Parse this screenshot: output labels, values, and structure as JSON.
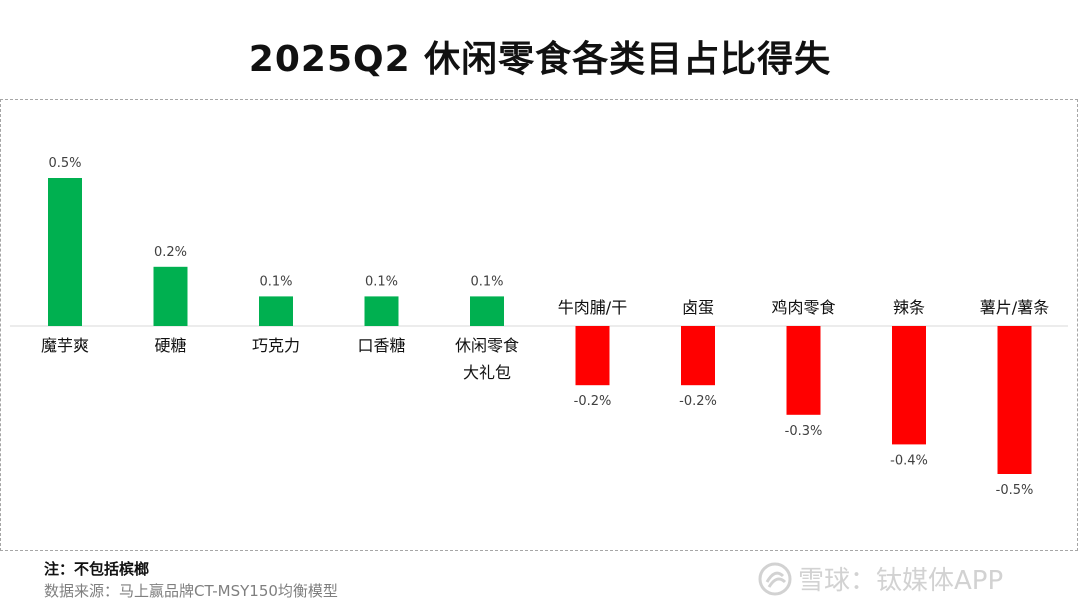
{
  "title": "2025Q2 休闲零食各类目占比得失",
  "chart_data": {
    "type": "bar",
    "title": "2025Q2 休闲零食各类目占比得失",
    "categories": [
      "魔芋爽",
      "硬糖",
      "巧克力",
      "口香糖",
      "休闲零食\n大礼包",
      "牛肉脯/干",
      "卤蛋",
      "鸡肉零食",
      "辣条",
      "薯片/薯条"
    ],
    "values": [
      0.5,
      0.2,
      0.1,
      0.1,
      0.1,
      -0.2,
      -0.2,
      -0.3,
      -0.4,
      -0.5
    ],
    "data_labels": [
      "0.5%",
      "0.2%",
      "0.1%",
      "0.1%",
      "0.1%",
      "-0.2%",
      "-0.2%",
      "-0.3%",
      "-0.4%",
      "-0.5%"
    ],
    "xlabel": "",
    "ylabel": "",
    "grid": false,
    "colors": {
      "positive": "#00b050",
      "negative": "#ff0000"
    }
  },
  "footer": {
    "note": "注：不包括槟榔",
    "source": "数据来源：马上赢品牌CT-MSY150均衡模型"
  },
  "watermark": {
    "icon": "snowball-logo-icon",
    "text": "雪球：钛媒体APP"
  }
}
